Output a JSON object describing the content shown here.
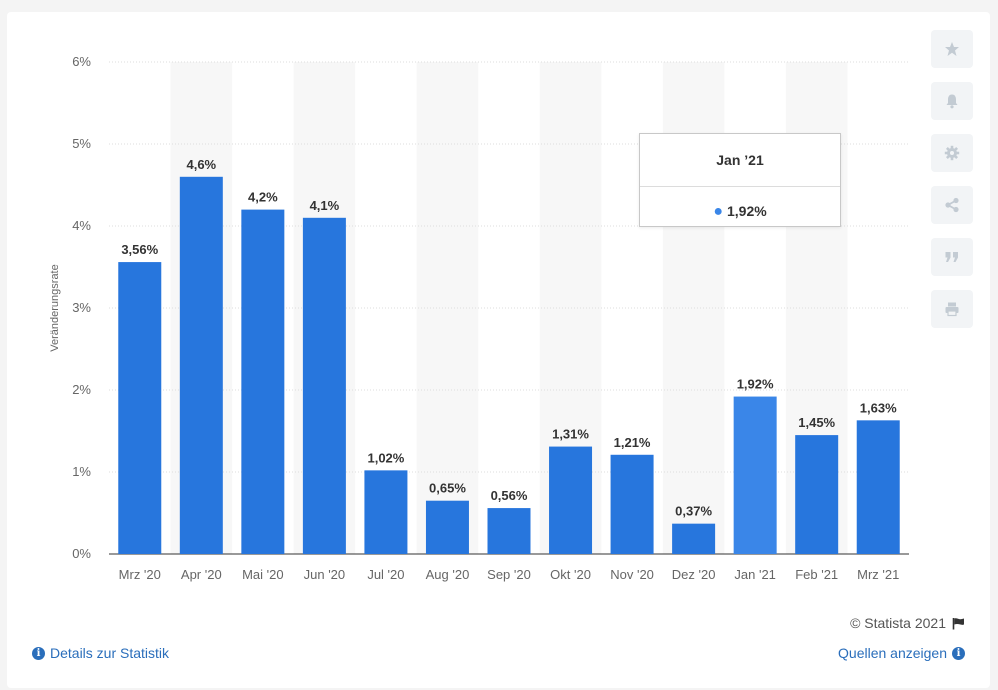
{
  "chart_data": {
    "type": "bar",
    "categories": [
      "Mrz '20",
      "Apr '20",
      "Mai '20",
      "Jun '20",
      "Jul '20",
      "Aug '20",
      "Sep '20",
      "Okt '20",
      "Nov '20",
      "Dez '20",
      "Jan '21",
      "Feb '21",
      "Mrz '21"
    ],
    "values": [
      3.56,
      4.6,
      4.2,
      4.1,
      1.02,
      0.65,
      0.56,
      1.31,
      1.21,
      0.37,
      1.92,
      1.45,
      1.63
    ],
    "value_labels": [
      "3,56%",
      "4,6%",
      "4,2%",
      "4,1%",
      "1,02%",
      "0,65%",
      "0,56%",
      "1,31%",
      "1,21%",
      "0,37%",
      "1,92%",
      "1,45%",
      "1,63%"
    ],
    "ylabel": "Veränderungsrate",
    "yticks": [
      "0%",
      "1%",
      "2%",
      "3%",
      "4%",
      "5%",
      "6%"
    ],
    "ylim": [
      0,
      6
    ],
    "grid": true,
    "highlighted_category": "Jan '21",
    "colors": {
      "bar": "#2776dd",
      "bar_highlight": "#3a86e8",
      "alt_band": "#f7f7f7",
      "grid": "#dcdcdc"
    }
  },
  "tooltip": {
    "title": "Jan ’21",
    "value": "1,92%"
  },
  "sidebar_icons": [
    "star-icon",
    "bell-icon",
    "gear-icon",
    "share-icon",
    "quote-icon",
    "print-icon"
  ],
  "footer": {
    "copyright": "© Statista 2021",
    "details_link": "Details zur Statistik",
    "sources_link": "Quellen anzeigen"
  }
}
